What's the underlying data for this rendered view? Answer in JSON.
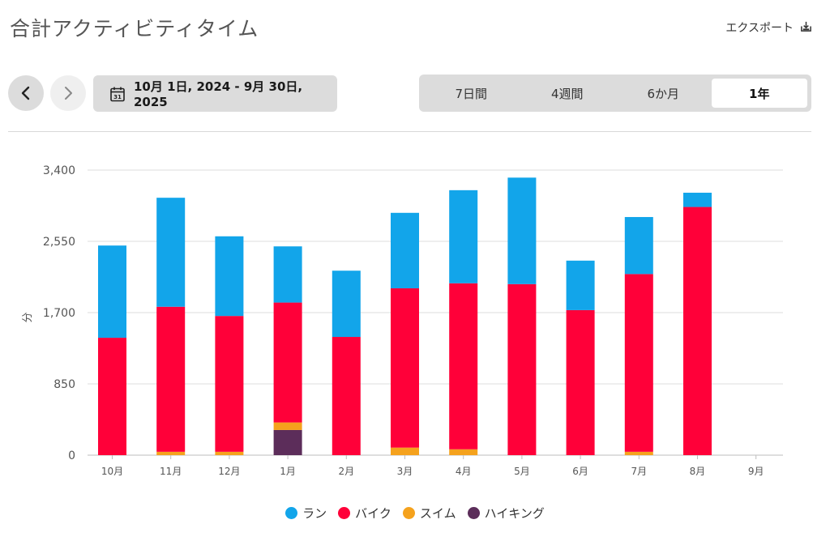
{
  "header": {
    "title": "合計アクティビティタイム",
    "export_label": "エクスポート"
  },
  "toolbar": {
    "date_range": "10月 1日, 2024 - 9月 30日, 2025",
    "calendar_day": "31",
    "ranges": [
      "7日間",
      "4週間",
      "6か月",
      "1年"
    ],
    "active_range": "1年"
  },
  "chart_data": {
    "type": "bar",
    "stacked": true,
    "categories": [
      "10月",
      "11月",
      "12月",
      "1月",
      "2月",
      "3月",
      "4月",
      "5月",
      "6月",
      "7月",
      "8月",
      "9月"
    ],
    "series": [
      {
        "name": "ハイキング",
        "color": "#5c2d5a",
        "values": [
          0,
          0,
          0,
          300,
          0,
          0,
          0,
          0,
          0,
          0,
          0,
          0
        ]
      },
      {
        "name": "スイム",
        "color": "#f5a21d",
        "values": [
          0,
          40,
          40,
          90,
          0,
          90,
          70,
          0,
          0,
          40,
          0,
          0
        ]
      },
      {
        "name": "バイク",
        "color": "#ff0039",
        "values": [
          1400,
          1730,
          1620,
          1430,
          1410,
          1900,
          1980,
          2040,
          1730,
          2120,
          2960,
          0
        ]
      },
      {
        "name": "ラン",
        "color": "#12a5ea",
        "values": [
          1100,
          1300,
          950,
          670,
          790,
          900,
          1110,
          1270,
          590,
          680,
          170,
          0
        ]
      }
    ],
    "legend_order": [
      "ラン",
      "バイク",
      "スイム",
      "ハイキング"
    ],
    "yticks": [
      0,
      850,
      1700,
      2550,
      3400
    ],
    "ytick_labels": [
      "0",
      "850",
      "1,700",
      "2,550",
      "3,400"
    ],
    "ylim": [
      0,
      3400
    ],
    "ylabel": "分",
    "xlabel": "",
    "grid": true,
    "legend_position": "bottom"
  }
}
